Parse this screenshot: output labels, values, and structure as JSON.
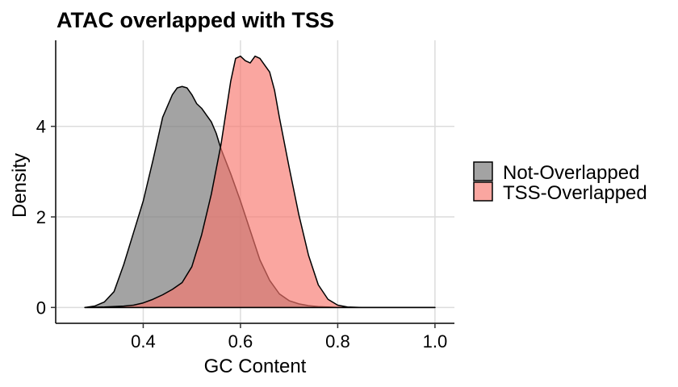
{
  "chart_data": {
    "type": "area",
    "subtype": "density",
    "title": "ATAC overlapped with TSS",
    "xlabel": "GC Content",
    "ylabel": "Density",
    "xlim": [
      0.22,
      1.04
    ],
    "ylim": [
      -0.35,
      5.9
    ],
    "x_ticks": [
      0.4,
      0.6,
      0.8,
      1.0
    ],
    "x_tick_labels": [
      "0.4",
      "0.6",
      "0.8",
      "1.0"
    ],
    "y_ticks": [
      0,
      2,
      4
    ],
    "y_tick_labels": [
      "0",
      "2",
      "4"
    ],
    "grid": true,
    "legend_position": "right",
    "series": [
      {
        "name": "Not-Overlapped",
        "color": "#808080",
        "opacity": 0.72,
        "x": [
          0.28,
          0.3,
          0.32,
          0.34,
          0.36,
          0.38,
          0.4,
          0.42,
          0.44,
          0.46,
          0.47,
          0.48,
          0.49,
          0.5,
          0.51,
          0.52,
          0.53,
          0.54,
          0.55,
          0.56,
          0.58,
          0.6,
          0.62,
          0.64,
          0.66,
          0.68,
          0.7,
          0.72,
          0.74,
          0.76,
          0.78,
          0.8,
          0.84,
          0.9,
          1.0
        ],
        "y": [
          0.0,
          0.03,
          0.12,
          0.35,
          0.95,
          1.65,
          2.35,
          3.25,
          4.2,
          4.7,
          4.85,
          4.88,
          4.85,
          4.7,
          4.5,
          4.4,
          4.25,
          4.1,
          3.85,
          3.5,
          2.95,
          2.35,
          1.7,
          1.05,
          0.6,
          0.3,
          0.15,
          0.08,
          0.04,
          0.02,
          0.01,
          0.0,
          0.0,
          0.0,
          0.0
        ]
      },
      {
        "name": "TSS-Overlapped",
        "color": "#F8766D",
        "opacity": 0.65,
        "x": [
          0.28,
          0.32,
          0.36,
          0.38,
          0.4,
          0.42,
          0.44,
          0.46,
          0.48,
          0.5,
          0.52,
          0.54,
          0.56,
          0.57,
          0.58,
          0.59,
          0.6,
          0.61,
          0.62,
          0.63,
          0.64,
          0.65,
          0.66,
          0.67,
          0.68,
          0.7,
          0.72,
          0.74,
          0.76,
          0.78,
          0.8,
          0.82,
          0.85,
          0.9,
          1.0
        ],
        "y": [
          0.0,
          0.01,
          0.03,
          0.05,
          0.1,
          0.18,
          0.28,
          0.4,
          0.55,
          0.9,
          1.6,
          2.5,
          3.6,
          4.3,
          5.0,
          5.5,
          5.55,
          5.45,
          5.4,
          5.55,
          5.5,
          5.35,
          5.2,
          4.8,
          4.2,
          3.1,
          2.05,
          1.15,
          0.5,
          0.18,
          0.05,
          0.01,
          0.0,
          0.0,
          0.0
        ]
      }
    ]
  }
}
